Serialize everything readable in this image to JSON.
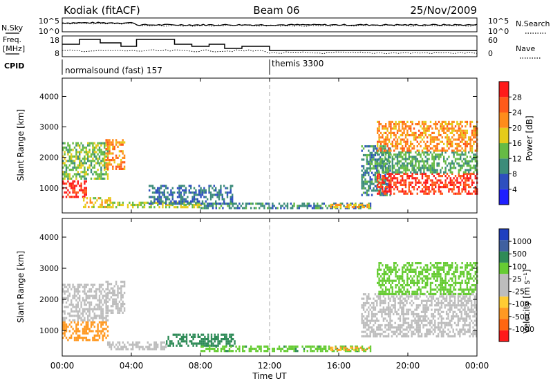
{
  "header": {
    "station": "Kodiak (fitACF)",
    "beam": "Beam 06",
    "date": "25/Nov/2009"
  },
  "strip_labels": {
    "nsky": "N.Sky",
    "nsearch": "N.Search",
    "freq_line1": "Freq.",
    "freq_line2": "[MHz]",
    "nave": "Nave",
    "cpid": "CPID",
    "noise_ticks_left": [
      "10^5",
      "10^0"
    ],
    "noise_ticks_right": [
      "10^5",
      "10^0"
    ],
    "freq_ticks_left": [
      "18",
      "8"
    ],
    "nave_ticks_right": [
      "60",
      "0"
    ]
  },
  "cpid_segments": [
    {
      "label": "normalsound (fast) 157",
      "start_hour": 0
    },
    {
      "label": "themis 3300",
      "start_hour": 12
    }
  ],
  "time_axis": {
    "label": "Time UT",
    "ticks": [
      "00:00",
      "04:00",
      "08:00",
      "12:00",
      "16:00",
      "20:00",
      "00:00"
    ]
  },
  "colors": {
    "power_scale": [
      "#1f1fff",
      "#2e4fbf",
      "#3c8c7a",
      "#66bb44",
      "#e6cc1a",
      "#ff8c1a",
      "#ff5a1a",
      "#ff1a1a"
    ],
    "velocity_scale": [
      "#2040c0",
      "#4060a0",
      "#2e8b57",
      "#66cc33",
      "#bdbdbd",
      "#bdbdbd",
      "#ffcc33",
      "#ff9922",
      "#ff6611",
      "#ff1a1a"
    ]
  },
  "chart_data": [
    {
      "type": "heatmap",
      "title": "",
      "xlabel": "Time UT",
      "ylabel": "Slant Range [km]",
      "xlim": [
        0,
        24
      ],
      "ylim": [
        180,
        4600
      ],
      "yticks": [
        "1000",
        "2000",
        "3000",
        "4000"
      ],
      "colorbar": {
        "label": "Power [dB]",
        "ticks": [
          "4",
          "8",
          "12",
          "16",
          "20",
          "24",
          "28"
        ]
      },
      "regions": [
        {
          "t0": 0.0,
          "t1": 1.4,
          "r0": 700,
          "r1": 1250,
          "value": 30
        },
        {
          "t0": 0.0,
          "t1": 2.6,
          "r0": 1300,
          "r1": 2500,
          "value": 14
        },
        {
          "t0": 1.2,
          "t1": 2.8,
          "r0": 400,
          "r1": 700,
          "value": 18
        },
        {
          "t0": 2.5,
          "t1": 3.6,
          "r0": 1600,
          "r1": 2600,
          "value": 22
        },
        {
          "t0": 2.6,
          "t1": 8.0,
          "r0": 400,
          "r1": 550,
          "value": 16
        },
        {
          "t0": 5.0,
          "t1": 9.8,
          "r0": 500,
          "r1": 1100,
          "value": 8
        },
        {
          "t0": 8.0,
          "t1": 17.8,
          "r0": 350,
          "r1": 520,
          "value": 10
        },
        {
          "t0": 15.5,
          "t1": 17.8,
          "r0": 350,
          "r1": 480,
          "value": 20
        },
        {
          "t0": 17.3,
          "t1": 19.0,
          "r0": 800,
          "r1": 2400,
          "value": 10
        },
        {
          "t0": 18.2,
          "t1": 24.0,
          "r0": 800,
          "r1": 1500,
          "value": 28
        },
        {
          "t0": 18.2,
          "t1": 24.0,
          "r0": 1500,
          "r1": 2200,
          "value": 12
        },
        {
          "t0": 18.2,
          "t1": 24.0,
          "r0": 2200,
          "r1": 3200,
          "value": 22
        }
      ]
    },
    {
      "type": "heatmap",
      "title": "",
      "xlabel": "Time UT",
      "ylabel": "Slant Range [km]",
      "xlim": [
        0,
        24
      ],
      "ylim": [
        180,
        4600
      ],
      "yticks": [
        "1000",
        "2000",
        "3000",
        "4000"
      ],
      "colorbar": {
        "label": "Velocity [m s⁻¹]",
        "ticks": [
          "1000",
          "500",
          "100",
          "25",
          "-25",
          "-100",
          "-500",
          "-1000"
        ]
      },
      "regions": [
        {
          "t0": 0.0,
          "t1": 2.6,
          "r0": 700,
          "r1": 1300,
          "value": -300
        },
        {
          "t0": 0.0,
          "t1": 2.6,
          "r0": 1300,
          "r1": 2500,
          "value": 0
        },
        {
          "t0": 2.5,
          "t1": 3.6,
          "r0": 1600,
          "r1": 2600,
          "value": 0
        },
        {
          "t0": 2.6,
          "t1": 6.0,
          "r0": 400,
          "r1": 650,
          "value": 0
        },
        {
          "t0": 6.0,
          "t1": 10.0,
          "r0": 500,
          "r1": 900,
          "value": 150
        },
        {
          "t0": 8.0,
          "t1": 17.8,
          "r0": 350,
          "r1": 520,
          "value": 80
        },
        {
          "t0": 15.5,
          "t1": 17.8,
          "r0": 350,
          "r1": 480,
          "value": -120
        },
        {
          "t0": 17.3,
          "t1": 24.0,
          "r0": 800,
          "r1": 2200,
          "value": 0
        },
        {
          "t0": 18.2,
          "t1": 24.0,
          "r0": 2200,
          "r1": 3200,
          "value": 60
        }
      ]
    }
  ]
}
